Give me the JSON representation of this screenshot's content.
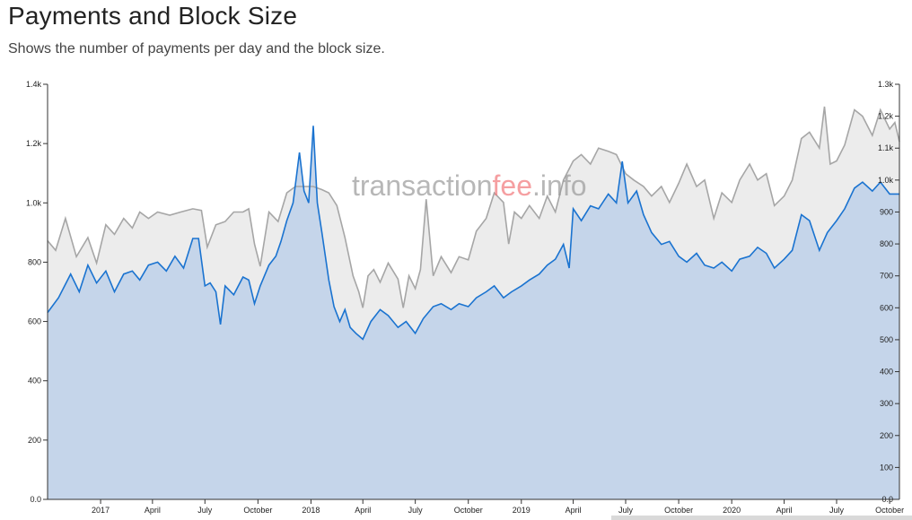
{
  "header": {
    "title": "Payments and Block Size",
    "subtitle": "Shows the number of payments per day and the block size."
  },
  "watermark": {
    "part1": "transaction",
    "part2": "fee",
    "part3": ".info",
    "accent": "#f2777a"
  },
  "colors": {
    "payments_line": "#1a73d0",
    "payments_fill": "#c5d5ea",
    "blocksize_line": "#a6a6a6",
    "blocksize_fill": "#ececec"
  },
  "chart_data": {
    "type": "area",
    "x_range": [
      "2016-10-01",
      "2020-10-18"
    ],
    "x_ticks": [
      {
        "date": "2017-01-01",
        "label": "2017"
      },
      {
        "date": "2017-04-01",
        "label": "April"
      },
      {
        "date": "2017-07-01",
        "label": "July"
      },
      {
        "date": "2017-10-01",
        "label": "October"
      },
      {
        "date": "2018-01-01",
        "label": "2018"
      },
      {
        "date": "2018-04-01",
        "label": "April"
      },
      {
        "date": "2018-07-01",
        "label": "July"
      },
      {
        "date": "2018-10-01",
        "label": "October"
      },
      {
        "date": "2019-01-01",
        "label": "2019"
      },
      {
        "date": "2019-04-01",
        "label": "April"
      },
      {
        "date": "2019-07-01",
        "label": "July"
      },
      {
        "date": "2019-10-01",
        "label": "October"
      },
      {
        "date": "2020-01-01",
        "label": "2020"
      },
      {
        "date": "2020-04-01",
        "label": "April"
      },
      {
        "date": "2020-07-01",
        "label": "July"
      },
      {
        "date": "2020-10-01",
        "label": "October"
      }
    ],
    "y_left": {
      "range": [
        0,
        1400
      ],
      "ticks": [
        0,
        200,
        400,
        600,
        800,
        1000,
        1200,
        1400
      ],
      "tick_labels": [
        "0.0",
        "200",
        "400",
        "600",
        "800",
        "1.0k",
        "1.2k",
        "1.4k"
      ]
    },
    "y_right": {
      "range": [
        0,
        1300
      ],
      "ticks": [
        0,
        100,
        200,
        300,
        400,
        500,
        600,
        700,
        800,
        900,
        1000,
        1100,
        1200,
        1300
      ],
      "tick_labels": [
        "0.0",
        "100",
        "200",
        "300",
        "400",
        "500",
        "600",
        "700",
        "800",
        "900",
        "1.0k",
        "1.1k",
        "1.2k",
        "1.3k"
      ]
    },
    "series": [
      {
        "axis": "left",
        "points": [
          [
            "2016-10-01",
            630
          ],
          [
            "2016-10-20",
            680
          ],
          [
            "2016-11-10",
            760
          ],
          [
            "2016-11-25",
            700
          ],
          [
            "2016-12-10",
            790
          ],
          [
            "2016-12-25",
            730
          ],
          [
            "2017-01-10",
            770
          ],
          [
            "2017-01-25",
            700
          ],
          [
            "2017-02-10",
            760
          ],
          [
            "2017-02-25",
            770
          ],
          [
            "2017-03-10",
            740
          ],
          [
            "2017-03-25",
            790
          ],
          [
            "2017-04-10",
            800
          ],
          [
            "2017-04-25",
            770
          ],
          [
            "2017-05-10",
            820
          ],
          [
            "2017-05-25",
            780
          ],
          [
            "2017-06-10",
            880
          ],
          [
            "2017-06-20",
            880
          ],
          [
            "2017-07-01",
            720
          ],
          [
            "2017-07-10",
            730
          ],
          [
            "2017-07-20",
            700
          ],
          [
            "2017-07-28",
            590
          ],
          [
            "2017-08-05",
            720
          ],
          [
            "2017-08-20",
            690
          ],
          [
            "2017-09-05",
            750
          ],
          [
            "2017-09-15",
            740
          ],
          [
            "2017-09-25",
            660
          ],
          [
            "2017-10-05",
            720
          ],
          [
            "2017-10-20",
            790
          ],
          [
            "2017-11-01",
            820
          ],
          [
            "2017-11-10",
            870
          ],
          [
            "2017-11-20",
            940
          ],
          [
            "2017-12-01",
            1000
          ],
          [
            "2017-12-12",
            1170
          ],
          [
            "2017-12-20",
            1040
          ],
          [
            "2017-12-28",
            1000
          ],
          [
            "2018-01-05",
            1260
          ],
          [
            "2018-01-12",
            1000
          ],
          [
            "2018-01-20",
            900
          ],
          [
            "2018-02-01",
            740
          ],
          [
            "2018-02-10",
            650
          ],
          [
            "2018-02-20",
            600
          ],
          [
            "2018-03-01",
            640
          ],
          [
            "2018-03-10",
            580
          ],
          [
            "2018-03-20",
            560
          ],
          [
            "2018-04-01",
            540
          ],
          [
            "2018-04-15",
            600
          ],
          [
            "2018-05-01",
            640
          ],
          [
            "2018-05-15",
            620
          ],
          [
            "2018-06-01",
            580
          ],
          [
            "2018-06-15",
            600
          ],
          [
            "2018-07-01",
            560
          ],
          [
            "2018-07-15",
            610
          ],
          [
            "2018-08-01",
            650
          ],
          [
            "2018-08-15",
            660
          ],
          [
            "2018-09-01",
            640
          ],
          [
            "2018-09-15",
            660
          ],
          [
            "2018-10-01",
            650
          ],
          [
            "2018-10-15",
            680
          ],
          [
            "2018-11-01",
            700
          ],
          [
            "2018-11-15",
            720
          ],
          [
            "2018-12-01",
            680
          ],
          [
            "2018-12-15",
            700
          ],
          [
            "2019-01-01",
            720
          ],
          [
            "2019-01-15",
            740
          ],
          [
            "2019-02-01",
            760
          ],
          [
            "2019-02-15",
            790
          ],
          [
            "2019-03-01",
            810
          ],
          [
            "2019-03-15",
            860
          ],
          [
            "2019-03-25",
            780
          ],
          [
            "2019-04-01",
            980
          ],
          [
            "2019-04-15",
            940
          ],
          [
            "2019-05-01",
            990
          ],
          [
            "2019-05-15",
            980
          ],
          [
            "2019-06-01",
            1030
          ],
          [
            "2019-06-15",
            1000
          ],
          [
            "2019-06-25",
            1140
          ],
          [
            "2019-07-05",
            1000
          ],
          [
            "2019-07-20",
            1040
          ],
          [
            "2019-08-01",
            960
          ],
          [
            "2019-08-15",
            900
          ],
          [
            "2019-09-01",
            860
          ],
          [
            "2019-09-15",
            870
          ],
          [
            "2019-10-01",
            820
          ],
          [
            "2019-10-15",
            800
          ],
          [
            "2019-11-01",
            830
          ],
          [
            "2019-11-15",
            790
          ],
          [
            "2019-12-01",
            780
          ],
          [
            "2019-12-15",
            800
          ],
          [
            "2020-01-01",
            770
          ],
          [
            "2020-01-15",
            810
          ],
          [
            "2020-02-01",
            820
          ],
          [
            "2020-02-15",
            850
          ],
          [
            "2020-03-01",
            830
          ],
          [
            "2020-03-15",
            780
          ],
          [
            "2020-04-01",
            810
          ],
          [
            "2020-04-15",
            840
          ],
          [
            "2020-05-01",
            960
          ],
          [
            "2020-05-15",
            940
          ],
          [
            "2020-06-01",
            840
          ],
          [
            "2020-06-15",
            900
          ],
          [
            "2020-07-01",
            940
          ],
          [
            "2020-07-15",
            980
          ],
          [
            "2020-08-01",
            1050
          ],
          [
            "2020-08-15",
            1070
          ],
          [
            "2020-09-01",
            1040
          ],
          [
            "2020-09-15",
            1070
          ],
          [
            "2020-10-01",
            1030
          ],
          [
            "2020-10-18",
            1030
          ]
        ]
      },
      {
        "axis": "right",
        "points": [
          [
            "2016-10-01",
            810
          ],
          [
            "2016-10-15",
            780
          ],
          [
            "2016-11-01",
            880
          ],
          [
            "2016-11-20",
            760
          ],
          [
            "2016-12-10",
            820
          ],
          [
            "2016-12-25",
            740
          ],
          [
            "2017-01-10",
            860
          ],
          [
            "2017-01-25",
            830
          ],
          [
            "2017-02-10",
            880
          ],
          [
            "2017-02-25",
            850
          ],
          [
            "2017-03-10",
            900
          ],
          [
            "2017-03-25",
            880
          ],
          [
            "2017-04-10",
            900
          ],
          [
            "2017-05-01",
            890
          ],
          [
            "2017-05-20",
            900
          ],
          [
            "2017-06-10",
            910
          ],
          [
            "2017-06-25",
            905
          ],
          [
            "2017-07-05",
            790
          ],
          [
            "2017-07-20",
            860
          ],
          [
            "2017-08-05",
            870
          ],
          [
            "2017-08-20",
            900
          ],
          [
            "2017-09-05",
            900
          ],
          [
            "2017-09-15",
            910
          ],
          [
            "2017-09-25",
            800
          ],
          [
            "2017-10-05",
            730
          ],
          [
            "2017-10-20",
            900
          ],
          [
            "2017-11-05",
            870
          ],
          [
            "2017-11-20",
            960
          ],
          [
            "2017-12-05",
            980
          ],
          [
            "2017-12-20",
            980
          ],
          [
            "2018-01-05",
            980
          ],
          [
            "2018-01-20",
            970
          ],
          [
            "2018-02-01",
            960
          ],
          [
            "2018-02-15",
            920
          ],
          [
            "2018-03-01",
            820
          ],
          [
            "2018-03-15",
            700
          ],
          [
            "2018-03-25",
            650
          ],
          [
            "2018-04-01",
            600
          ],
          [
            "2018-04-10",
            700
          ],
          [
            "2018-04-20",
            720
          ],
          [
            "2018-05-01",
            680
          ],
          [
            "2018-05-15",
            740
          ],
          [
            "2018-06-01",
            690
          ],
          [
            "2018-06-10",
            600
          ],
          [
            "2018-06-20",
            700
          ],
          [
            "2018-07-01",
            660
          ],
          [
            "2018-07-10",
            720
          ],
          [
            "2018-07-20",
            940
          ],
          [
            "2018-08-01",
            700
          ],
          [
            "2018-08-15",
            760
          ],
          [
            "2018-09-01",
            710
          ],
          [
            "2018-09-15",
            760
          ],
          [
            "2018-10-01",
            750
          ],
          [
            "2018-10-15",
            840
          ],
          [
            "2018-11-01",
            880
          ],
          [
            "2018-11-15",
            960
          ],
          [
            "2018-12-01",
            930
          ],
          [
            "2018-12-10",
            800
          ],
          [
            "2018-12-20",
            900
          ],
          [
            "2019-01-01",
            880
          ],
          [
            "2019-01-15",
            920
          ],
          [
            "2019-02-01",
            880
          ],
          [
            "2019-02-15",
            950
          ],
          [
            "2019-03-01",
            900
          ],
          [
            "2019-03-15",
            1000
          ],
          [
            "2019-04-01",
            1060
          ],
          [
            "2019-04-15",
            1080
          ],
          [
            "2019-05-01",
            1050
          ],
          [
            "2019-05-15",
            1100
          ],
          [
            "2019-06-01",
            1090
          ],
          [
            "2019-06-15",
            1080
          ],
          [
            "2019-07-01",
            1020
          ],
          [
            "2019-07-15",
            1000
          ],
          [
            "2019-08-01",
            980
          ],
          [
            "2019-08-15",
            950
          ],
          [
            "2019-09-01",
            980
          ],
          [
            "2019-09-15",
            930
          ],
          [
            "2019-10-01",
            990
          ],
          [
            "2019-10-15",
            1050
          ],
          [
            "2019-11-01",
            980
          ],
          [
            "2019-11-15",
            1000
          ],
          [
            "2019-12-01",
            880
          ],
          [
            "2019-12-15",
            960
          ],
          [
            "2020-01-01",
            930
          ],
          [
            "2020-01-15",
            1000
          ],
          [
            "2020-02-01",
            1050
          ],
          [
            "2020-02-15",
            1000
          ],
          [
            "2020-03-01",
            1020
          ],
          [
            "2020-03-15",
            920
          ],
          [
            "2020-04-01",
            950
          ],
          [
            "2020-04-15",
            1000
          ],
          [
            "2020-05-01",
            1130
          ],
          [
            "2020-05-15",
            1150
          ],
          [
            "2020-06-01",
            1100
          ],
          [
            "2020-06-10",
            1230
          ],
          [
            "2020-06-20",
            1050
          ],
          [
            "2020-07-01",
            1060
          ],
          [
            "2020-07-15",
            1110
          ],
          [
            "2020-08-01",
            1220
          ],
          [
            "2020-08-15",
            1200
          ],
          [
            "2020-09-01",
            1140
          ],
          [
            "2020-09-15",
            1220
          ],
          [
            "2020-10-01",
            1160
          ],
          [
            "2020-10-10",
            1180
          ],
          [
            "2020-10-18",
            1120
          ]
        ]
      }
    ]
  }
}
